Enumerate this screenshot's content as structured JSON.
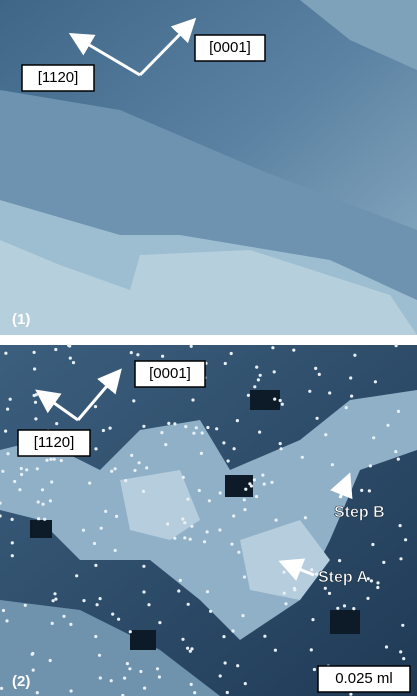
{
  "panels": [
    {
      "label": "(1)",
      "directions": [
        "[0001]",
        "[1120]"
      ]
    },
    {
      "label": "(2)",
      "directions": [
        "[0001]",
        "[1120]"
      ],
      "annotations": [
        "Step B",
        "Step A"
      ],
      "scale": "0.025 ml"
    }
  ]
}
